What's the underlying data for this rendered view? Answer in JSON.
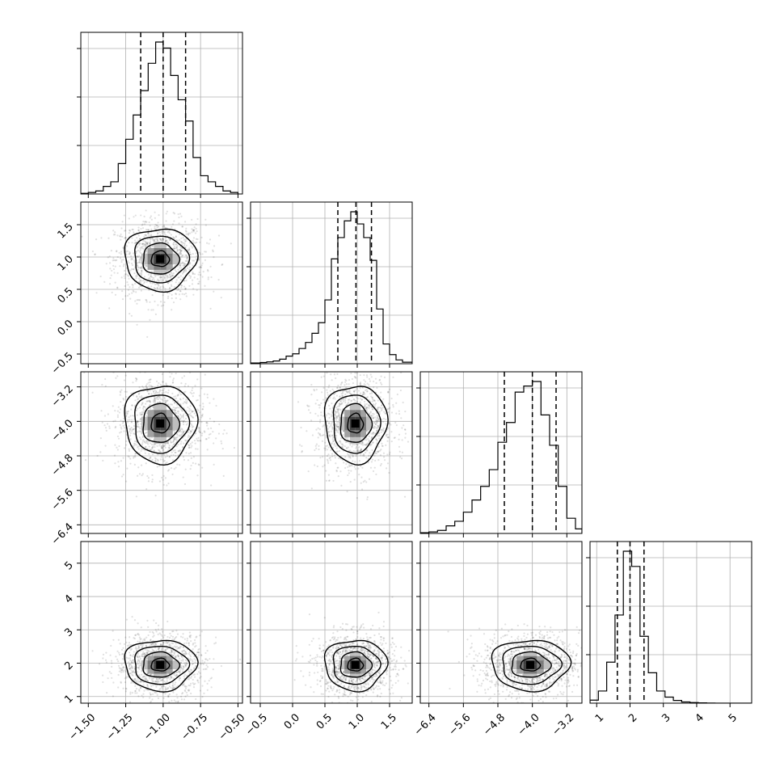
{
  "chart_data": {
    "type": "corner",
    "parameters": [
      {
        "range": [
          -1.55,
          -0.47
        ],
        "ticks": [
          -1.5,
          -1.25,
          -1.0,
          -0.75,
          -0.5
        ],
        "tick_labels": [
          "−1.50",
          "−1.25",
          "−1.00",
          "−0.75",
          "−0.50"
        ]
      },
      {
        "range": [
          -0.65,
          1.85
        ],
        "ticks": [
          -0.5,
          0.0,
          0.5,
          1.0,
          1.5
        ],
        "tick_labels": [
          "−0.5",
          "0.0",
          "0.5",
          "1.0",
          "1.5"
        ]
      },
      {
        "range": [
          -6.6,
          -2.85
        ],
        "ticks": [
          -6.4,
          -5.6,
          -4.8,
          -4.0,
          -3.2
        ],
        "tick_labels": [
          "−6.4",
          "−5.6",
          "−4.8",
          "−4.0",
          "−3.2"
        ]
      },
      {
        "range": [
          0.8,
          5.65
        ],
        "ticks": [
          1,
          2,
          3,
          4,
          5
        ],
        "tick_labels": [
          "1",
          "2",
          "3",
          "4",
          "5"
        ]
      }
    ],
    "quantile_lines": [
      [
        -1.15,
        -1.0,
        -0.85
      ],
      [
        0.7,
        0.98,
        1.22
      ],
      [
        -4.65,
        -4.0,
        -3.45
      ],
      [
        1.62,
        2.0,
        2.42
      ]
    ],
    "histograms": [
      {
        "bins": [
          -1.55,
          -1.5,
          -1.45,
          -1.4,
          -1.35,
          -1.3,
          -1.25,
          -1.2,
          -1.15,
          -1.1,
          -1.05,
          -1.0,
          -0.95,
          -0.9,
          -0.85,
          -0.8,
          -0.75,
          -0.7,
          -0.65,
          -0.6,
          -0.55,
          -0.5
        ],
        "counts": [
          0.004,
          0.01,
          0.02,
          0.05,
          0.08,
          0.2,
          0.36,
          0.52,
          0.68,
          0.86,
          1.0,
          0.96,
          0.78,
          0.62,
          0.48,
          0.24,
          0.12,
          0.08,
          0.05,
          0.02,
          0.01
        ]
      },
      {
        "bins": [
          -0.65,
          -0.5,
          -0.4,
          -0.3,
          -0.2,
          -0.1,
          0.0,
          0.1,
          0.2,
          0.3,
          0.4,
          0.5,
          0.6,
          0.7,
          0.8,
          0.9,
          1.0,
          1.1,
          1.2,
          1.3,
          1.4,
          1.5,
          1.6,
          1.7,
          1.85
        ],
        "counts": [
          0.005,
          0.008,
          0.012,
          0.018,
          0.03,
          0.05,
          0.065,
          0.1,
          0.14,
          0.2,
          0.27,
          0.42,
          0.69,
          0.83,
          0.94,
          1.0,
          0.92,
          0.83,
          0.68,
          0.36,
          0.13,
          0.06,
          0.025,
          0.01
        ]
      },
      {
        "bins": [
          -6.6,
          -6.4,
          -6.2,
          -6.0,
          -5.8,
          -5.6,
          -5.4,
          -5.2,
          -5.0,
          -4.8,
          -4.6,
          -4.4,
          -4.2,
          -4.0,
          -3.8,
          -3.6,
          -3.4,
          -3.2,
          -3.0,
          -2.85
        ],
        "counts": [
          0.005,
          0.01,
          0.02,
          0.05,
          0.08,
          0.14,
          0.22,
          0.31,
          0.42,
          0.6,
          0.73,
          0.93,
          0.97,
          1.0,
          0.78,
          0.58,
          0.31,
          0.1,
          0.03
        ]
      },
      {
        "bins": [
          0.8,
          1.05,
          1.3,
          1.55,
          1.8,
          2.05,
          2.3,
          2.55,
          2.8,
          3.05,
          3.3,
          3.55,
          3.8,
          4.05,
          4.3,
          4.55,
          4.8,
          5.05,
          5.3,
          5.65
        ],
        "counts": [
          0.02,
          0.08,
          0.27,
          0.58,
          1.0,
          0.9,
          0.44,
          0.2,
          0.08,
          0.04,
          0.018,
          0.008,
          0.004,
          0.002,
          0.001,
          0.0,
          0.0,
          0.0,
          0.0
        ]
      }
    ],
    "centers": [
      -1.02,
      0.97,
      -4.05,
      1.95
    ],
    "spreads": [
      0.12,
      0.24,
      0.45,
      0.38
    ],
    "grid": true
  }
}
